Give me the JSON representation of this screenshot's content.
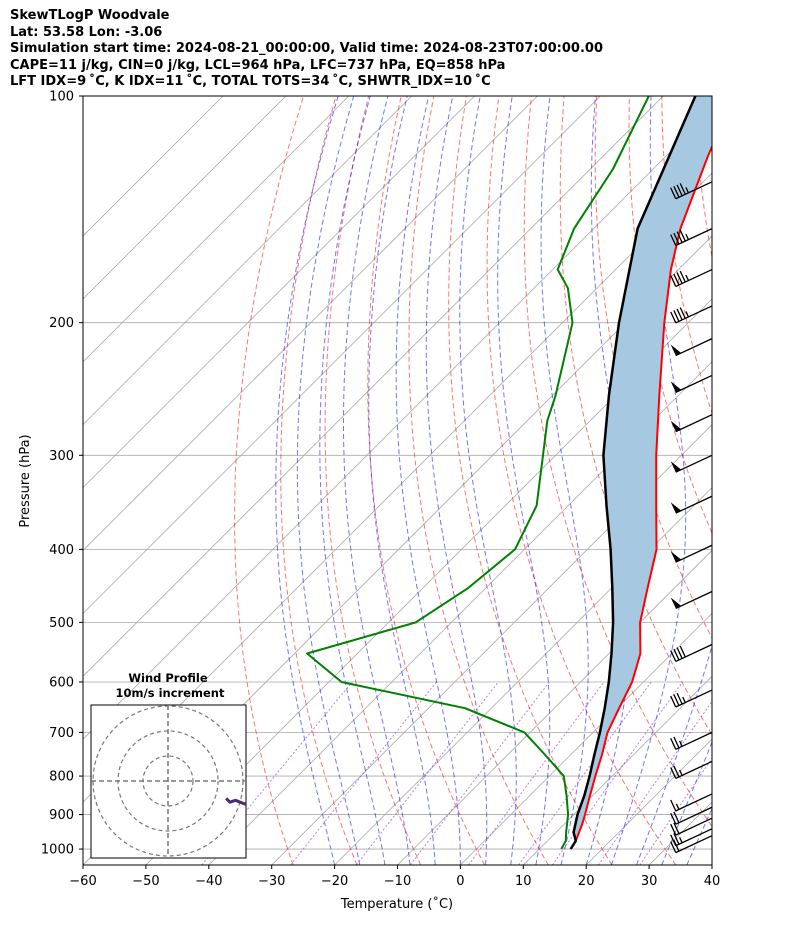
{
  "header": {
    "line1": "SkewTLogP Woodvale",
    "line2": "Lat: 53.58   Lon: -3.06",
    "line3": "Simulation start time: 2024-08-21_00:00:00, Valid time: 2024-08-23T07:00:00.00",
    "line4": "CAPE=11 j/kg, CIN=0 j/kg, LCL=964 hPa, LFC=737 hPa, EQ=858 hPa",
    "line5": "LFT IDX=9 ˚C, K IDX=11 ˚C, TOTAL TOTS=34 ˚C, SHWTR_IDX=10 ˚C"
  },
  "colors": {
    "temperature": "#ff0000",
    "dewpoint": "#008000",
    "parcel": "#000000",
    "cape_fill": "#a6c8e0",
    "dry_adiabat": "#ff0000",
    "moist_adiabat": "#0000ff",
    "mixing_ratio": "#8a2be2",
    "isotherm": "#aaaaaa",
    "isobar": "#aaaaaa",
    "hodograph": "#4b2a6e"
  },
  "chart_data": {
    "type": "skewt",
    "xlabel": "Temperature (˚C)",
    "ylabel": "Pressure (hPa)",
    "xlim": [
      -60,
      40
    ],
    "ylim": [
      1050,
      100
    ],
    "x_ticks": [
      -60,
      -50,
      -40,
      -30,
      -20,
      -10,
      0,
      10,
      20,
      30,
      40
    ],
    "x_tick_labels": [
      "−60",
      "−50",
      "−40",
      "−30",
      "−20",
      "−10",
      "0",
      "10",
      "20",
      "30",
      "40"
    ],
    "y_ticks": [
      100,
      200,
      300,
      400,
      500,
      600,
      700,
      800,
      900,
      1000
    ],
    "y_tick_labels": [
      "100",
      "200",
      "300",
      "400",
      "500",
      "600",
      "700",
      "800",
      "900",
      "1000"
    ],
    "temperature_profile": {
      "name": "Temperature",
      "pressure": [
        1000,
        975,
        925,
        900,
        850,
        800,
        750,
        700,
        650,
        600,
        550,
        500,
        450,
        400,
        350,
        300,
        250,
        200,
        170,
        150,
        120,
        100
      ],
      "values": [
        15,
        14.5,
        12.8,
        11.8,
        9.6,
        7.3,
        5.0,
        2.3,
        0.3,
        -1.8,
        -5.0,
        -10.0,
        -14.3,
        -19.0,
        -26.0,
        -34.0,
        -43.0,
        -53.8,
        -61.2,
        -66.2,
        -73.4,
        -78.6
      ]
    },
    "dewpoint_profile": {
      "name": "Dewpoint",
      "pressure": [
        1000,
        975,
        950,
        900,
        850,
        800,
        750,
        700,
        650,
        600,
        550,
        500,
        450,
        400,
        350,
        300,
        270,
        250,
        200,
        180,
        170,
        150,
        125,
        100
      ],
      "values": [
        13.5,
        12.9,
        11.6,
        9.1,
        5.9,
        2.3,
        -4.0,
        -10.9,
        -24.2,
        -48.0,
        -58.0,
        -45.7,
        -42.8,
        -41.5,
        -45.0,
        -52.0,
        -56.8,
        -59.5,
        -68.4,
        -74.6,
        -79.2,
        -83.1,
        -86.4,
        -92.3
      ]
    },
    "parcel_profile": {
      "name": "Parcel",
      "pressure": [
        1000,
        975,
        950,
        900,
        850,
        800,
        750,
        700,
        650,
        600,
        550,
        500,
        450,
        400,
        350,
        300,
        250,
        200,
        150,
        100
      ],
      "values": [
        15,
        14.5,
        12.8,
        10.6,
        8.7,
        6.4,
        3.8,
        1.1,
        -2.0,
        -5.5,
        -9.6,
        -14.3,
        -19.9,
        -26.3,
        -33.9,
        -42.4,
        -51.0,
        -61.0,
        -73.0,
        -84.9
      ]
    },
    "cape_shading": "between parcel and temperature",
    "wind_barbs": {
      "pressure": [
        130,
        150,
        170,
        190,
        210,
        235,
        265,
        300,
        340,
        395,
        455,
        535,
        615,
        700,
        765,
        845,
        880,
        910,
        940,
        960
      ],
      "speed_kt": [
        45,
        45,
        45,
        45,
        50,
        50,
        50,
        50,
        50,
        50,
        50,
        40,
        35,
        25,
        25,
        15,
        20,
        20,
        25,
        20
      ]
    },
    "hodograph": {
      "title": "Wind Profile",
      "subtitle": "10m/s increment",
      "rings_ms": [
        10,
        20,
        30
      ],
      "u": [
        13,
        14,
        15,
        18,
        23,
        25,
        27,
        28,
        30,
        32,
        36,
        44,
        52,
        58,
        65
      ],
      "v": [
        -4,
        -5,
        -6,
        -5,
        -7,
        -6,
        -4,
        0,
        3,
        6,
        8,
        9,
        11,
        15,
        18
      ]
    }
  }
}
